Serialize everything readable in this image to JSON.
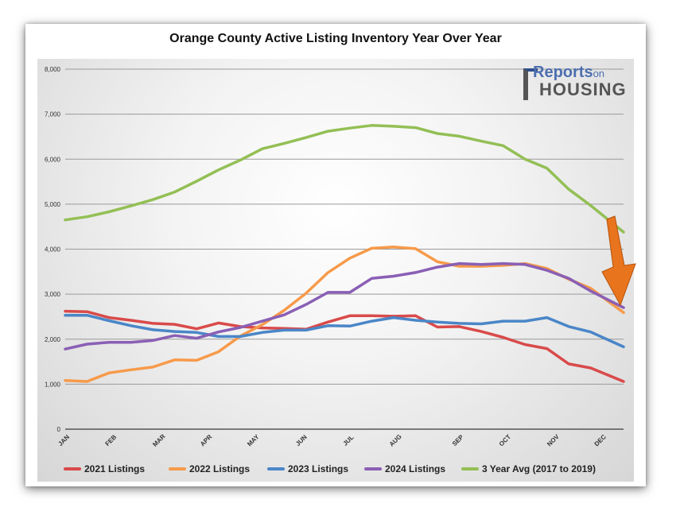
{
  "chart_data": {
    "type": "line",
    "title": "Orange County Active Listing Inventory Year Over Year",
    "xlabel": "",
    "ylabel": "",
    "ylim": [
      0,
      8000
    ],
    "yticks": [
      "0",
      "1,000",
      "2,000",
      "3,000",
      "4,000",
      "5,000",
      "6,000",
      "7,000",
      "8,000"
    ],
    "month_labels": [
      "JAN",
      "FEB",
      "MAR",
      "APR",
      "MAY",
      "JUN",
      "JUL",
      "AUG",
      "SEP",
      "OCT",
      "NOV",
      "DEC"
    ],
    "grid": true,
    "legend_position": "bottom",
    "x_week_range": [
      0,
      51
    ],
    "series": [
      {
        "name": "2021 Listings",
        "color": "#d94a4a",
        "x": [
          0,
          2,
          4,
          6,
          8,
          10,
          12,
          14,
          16,
          18,
          20,
          22,
          24,
          26,
          28,
          30,
          32,
          34,
          36,
          38,
          40,
          42,
          44,
          46,
          48,
          51
        ],
        "values": [
          2620,
          2610,
          2480,
          2420,
          2350,
          2330,
          2230,
          2360,
          2280,
          2250,
          2240,
          2220,
          2380,
          2520,
          2520,
          2510,
          2520,
          2270,
          2280,
          2170,
          2040,
          1880,
          1790,
          1450,
          1360,
          1060
        ]
      },
      {
        "name": "2022 Listings",
        "color": "#f79a4a",
        "x": [
          0,
          2,
          4,
          6,
          8,
          10,
          12,
          14,
          16,
          18,
          20,
          22,
          24,
          26,
          28,
          30,
          32,
          34,
          36,
          38,
          40,
          42,
          44,
          46,
          48,
          51
        ],
        "values": [
          1080,
          1060,
          1250,
          1320,
          1380,
          1540,
          1530,
          1720,
          2070,
          2320,
          2640,
          3020,
          3480,
          3800,
          4020,
          4050,
          4010,
          3720,
          3620,
          3620,
          3640,
          3680,
          3570,
          3330,
          3130,
          2590
        ]
      },
      {
        "name": "2023 Listings",
        "color": "#4a86c8",
        "x": [
          0,
          2,
          4,
          6,
          8,
          10,
          12,
          14,
          16,
          18,
          20,
          22,
          24,
          26,
          28,
          30,
          32,
          34,
          36,
          38,
          40,
          42,
          44,
          46,
          48,
          51
        ],
        "values": [
          2530,
          2530,
          2410,
          2300,
          2210,
          2170,
          2150,
          2060,
          2060,
          2150,
          2200,
          2200,
          2300,
          2290,
          2400,
          2480,
          2420,
          2380,
          2350,
          2340,
          2400,
          2400,
          2480,
          2280,
          2160,
          1830
        ]
      },
      {
        "name": "2024 Listings",
        "color": "#8a5fb5",
        "x": [
          0,
          2,
          4,
          6,
          8,
          10,
          12,
          14,
          16,
          18,
          20,
          22,
          24,
          26,
          28,
          30,
          32,
          34,
          36,
          38,
          40,
          42,
          44,
          46,
          48,
          51
        ],
        "values": [
          1780,
          1890,
          1930,
          1930,
          1970,
          2080,
          2020,
          2160,
          2260,
          2400,
          2540,
          2770,
          3040,
          3040,
          3350,
          3400,
          3480,
          3600,
          3680,
          3660,
          3680,
          3660,
          3530,
          3350,
          3070,
          2700
        ]
      },
      {
        "name": "3 Year Avg (2017 to 2019)",
        "color": "#93bf55",
        "x": [
          0,
          2,
          4,
          6,
          8,
          10,
          12,
          14,
          16,
          18,
          20,
          22,
          24,
          26,
          28,
          30,
          32,
          34,
          36,
          38,
          40,
          42,
          44,
          46,
          48,
          51
        ],
        "values": [
          4650,
          4720,
          4830,
          4960,
          5100,
          5270,
          5510,
          5760,
          5980,
          6230,
          6350,
          6480,
          6620,
          6690,
          6750,
          6730,
          6700,
          6570,
          6510,
          6400,
          6300,
          6000,
          5800,
          5330,
          4970,
          4380
        ]
      }
    ],
    "annotation": "downward-arrow"
  },
  "logo": {
    "line1": "Reports",
    "line1_small": "on",
    "line2": "HOUSING"
  }
}
